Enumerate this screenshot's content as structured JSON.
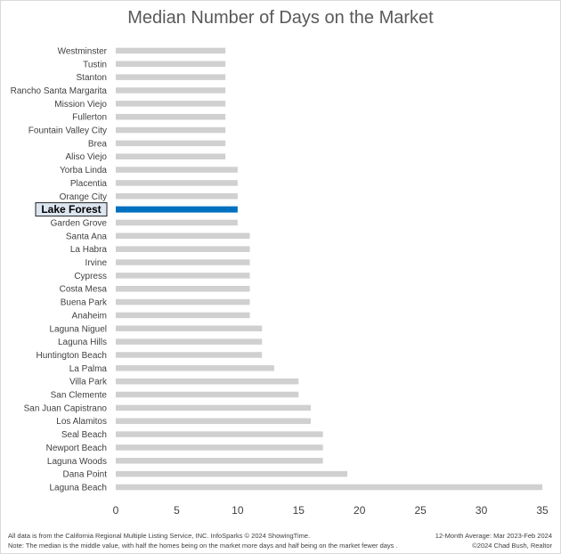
{
  "chart_data": {
    "type": "bar",
    "orientation": "horizontal",
    "title": "Median Number of Days on the Market",
    "categories": [
      "Westminster",
      "Tustin",
      "Stanton",
      "Rancho Santa Margarita",
      "Mission Viejo",
      "Fullerton",
      "Fountain Valley City",
      "Brea",
      "Aliso Viejo",
      "Yorba Linda",
      "Placentia",
      "Orange City",
      "Lake Forest",
      "Garden Grove",
      "Santa Ana",
      "La Habra",
      "Irvine",
      "Cypress",
      "Costa Mesa",
      "Buena Park",
      "Anaheim",
      "Laguna Niguel",
      "Laguna Hills",
      "Huntington Beach",
      "La Palma",
      "Villa Park",
      "San Clemente",
      "San Juan Capistrano",
      "Los Alamitos",
      "Seal Beach",
      "Newport Beach",
      "Laguna Woods",
      "Dana Point",
      "Laguna Beach"
    ],
    "values": [
      9,
      9,
      9,
      9,
      9,
      9,
      9,
      9,
      9,
      10,
      10,
      10,
      10,
      10,
      11,
      11,
      11,
      11,
      11,
      11,
      11,
      12,
      12,
      12,
      13,
      15,
      15,
      16,
      16,
      17,
      17,
      17,
      19,
      35
    ],
    "highlight": "Lake Forest",
    "xlim": [
      0,
      35
    ],
    "xticks": [
      0,
      5,
      10,
      15,
      20,
      25,
      30,
      35
    ],
    "grid": false,
    "legend": "none",
    "xlabel": "",
    "ylabel": "",
    "colors": {
      "bar": "#d0d0d0",
      "highlight": "#0070c0",
      "highlight_label_bg": "#dde6f0",
      "text": "#404040",
      "title": "#595959"
    }
  },
  "footer": {
    "left_line1": "All data is from the California Regional Multiple Listing Service, INC. InfoSparks © 2024 ShowingTime.",
    "left_line2": "Note: The median is the middle value, with half the homes being on the market more days and half being on the market fewer days .",
    "right_line1": "12-Month Average: Mar 2023-Feb 2024",
    "right_line2": "©2024 Chad Bush, Realtor"
  }
}
